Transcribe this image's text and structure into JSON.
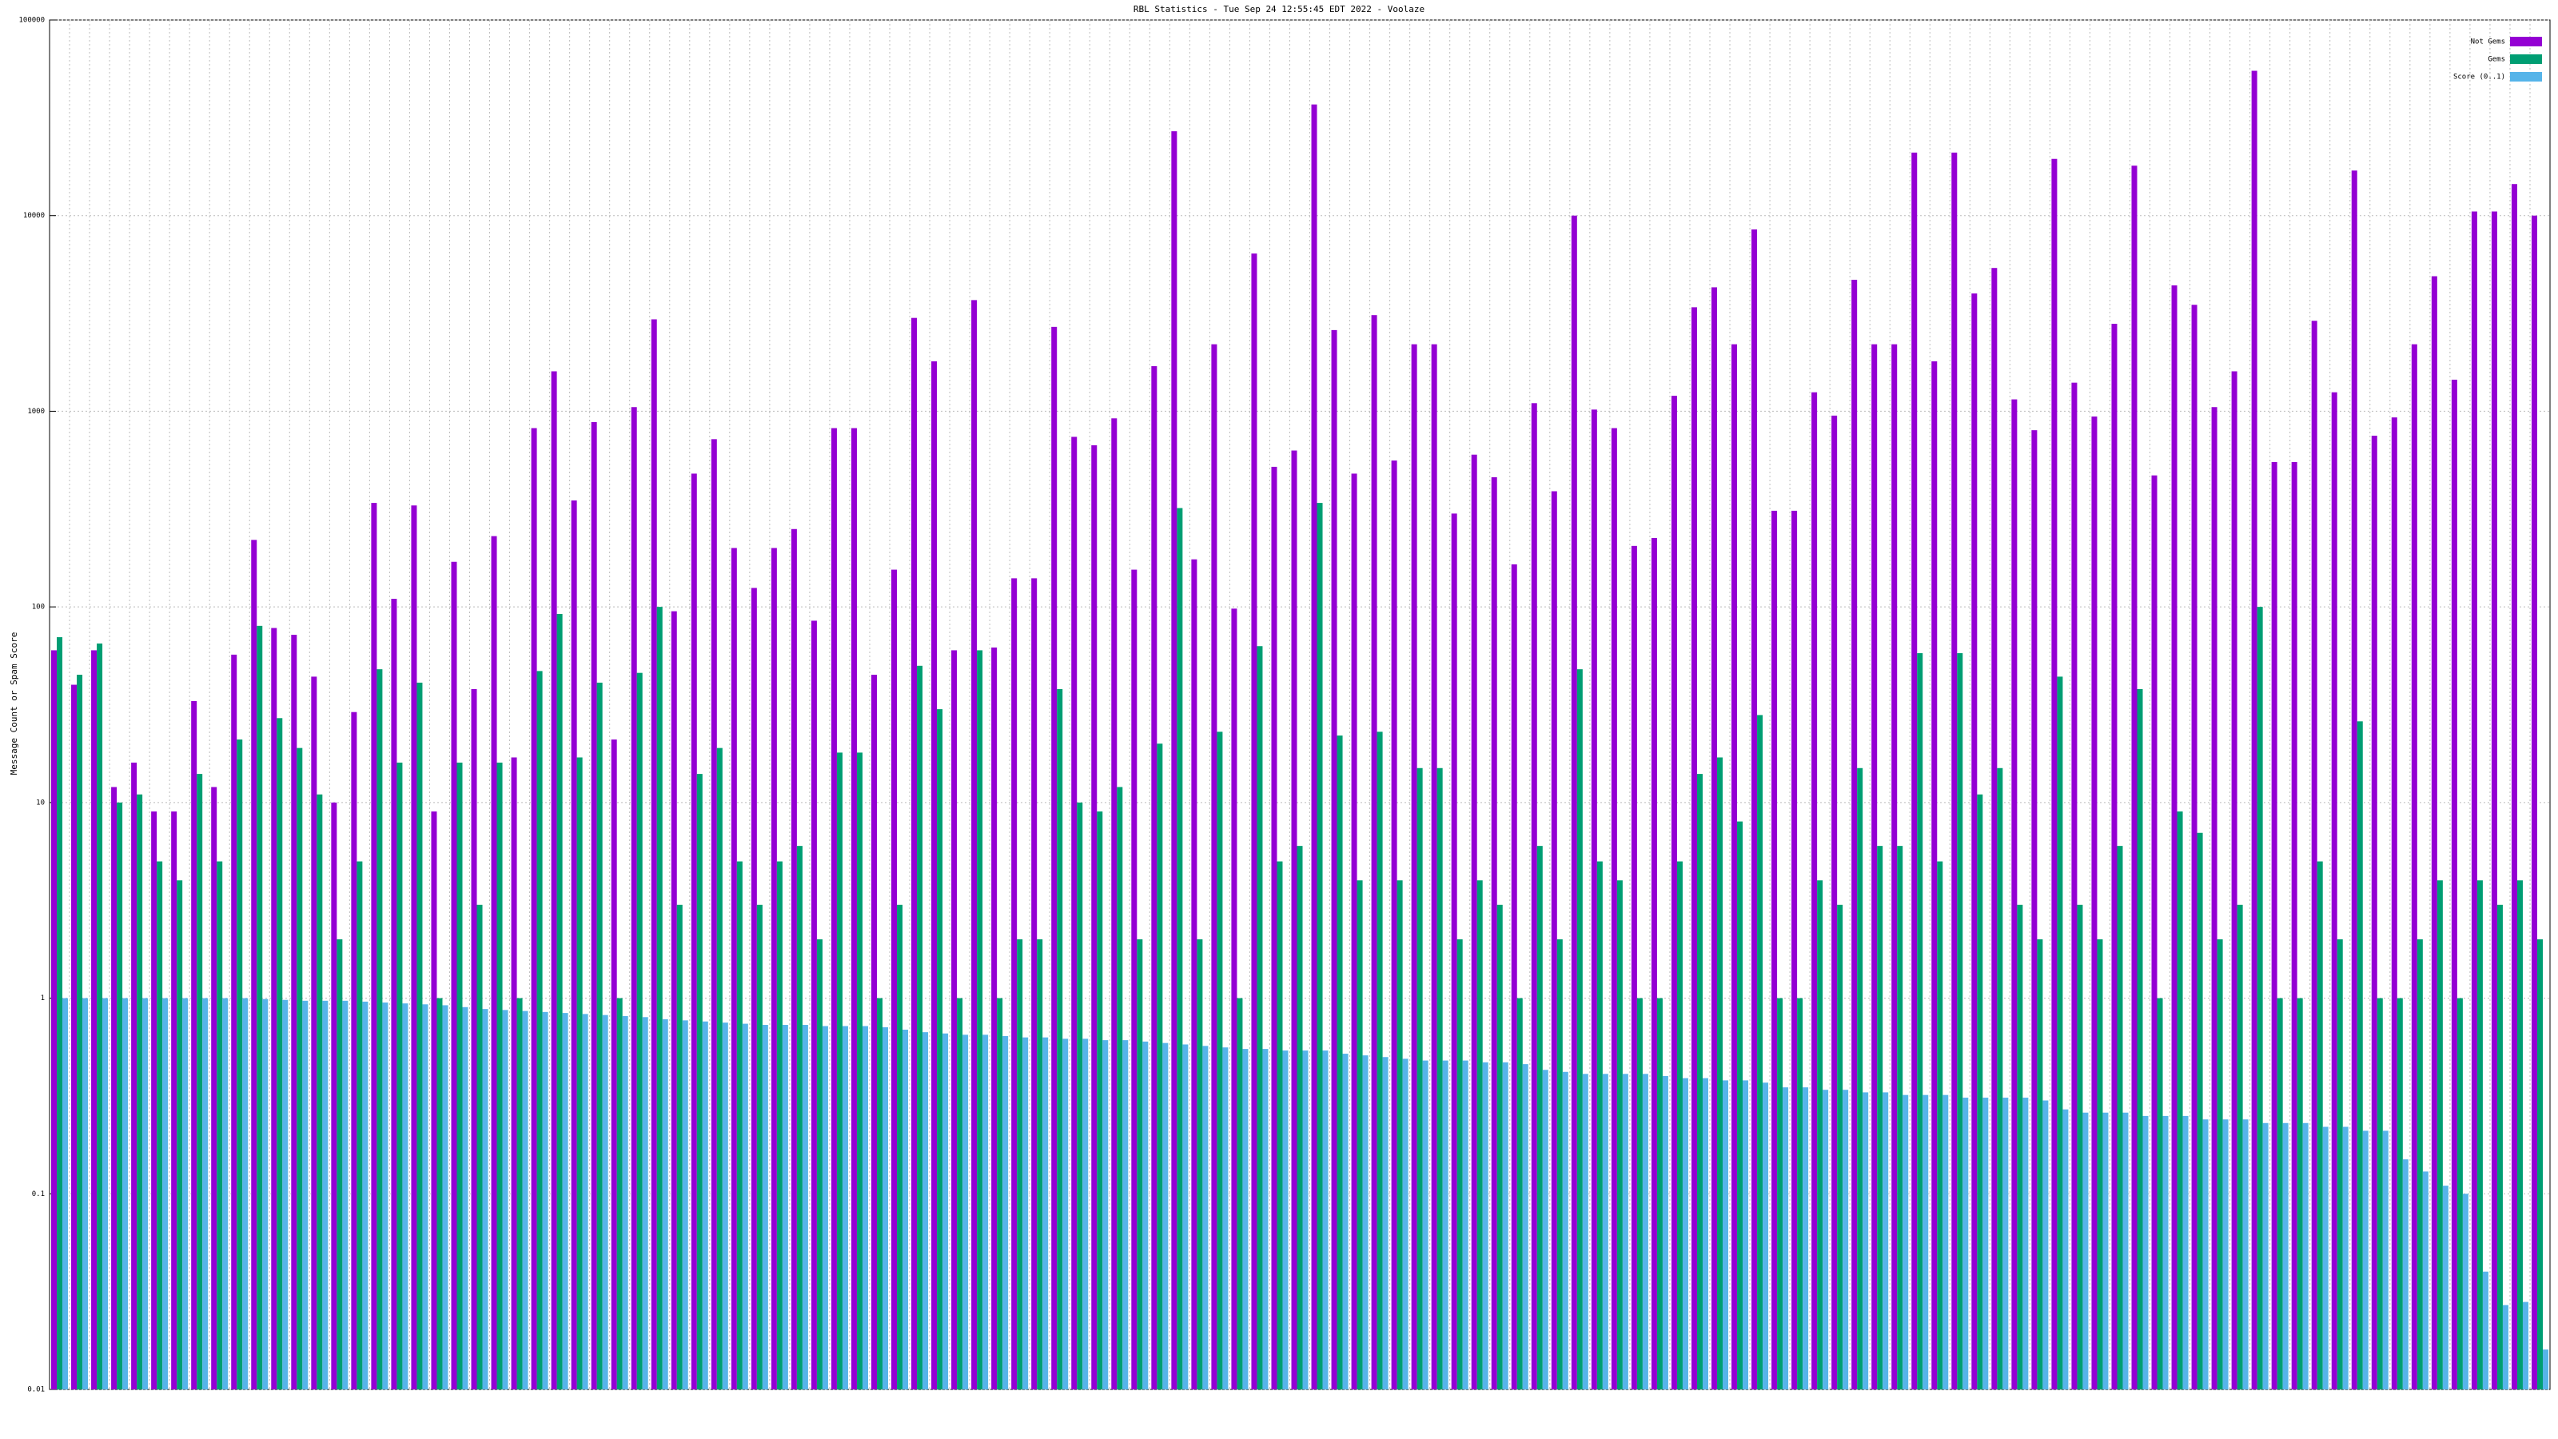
{
  "chart_data": {
    "type": "bar",
    "title": "RBL Statistics - Tue Sep 24 12:55:45 EDT 2022 - Voolaze",
    "y_label": "Message Count or Spam Score",
    "log_scale": true,
    "grid": true,
    "legend": "top-right",
    "ylim": [
      0.01,
      100000
    ],
    "yticks": [
      0.01,
      0.1,
      1,
      10,
      100,
      1000,
      10000,
      100000
    ],
    "categories": [
      null,
      null,
      null,
      null,
      null,
      null,
      null,
      null,
      null,
      null,
      null,
      null,
      null,
      null,
      null,
      null,
      null,
      null,
      null,
      null,
      null,
      null,
      null,
      null,
      null,
      null,
      null,
      null,
      null,
      null,
      null,
      null,
      null,
      null,
      null,
      null,
      null,
      null,
      null,
      null,
      null,
      null,
      null,
      null,
      null,
      null,
      null,
      null,
      null,
      null,
      null,
      null,
      null,
      null,
      null,
      null,
      null,
      null,
      null,
      null,
      null,
      null,
      null,
      null,
      null,
      null,
      null,
      null,
      null,
      null,
      null,
      null,
      null,
      null,
      null,
      null,
      null,
      null,
      null,
      null,
      null,
      null,
      null,
      null,
      null,
      null,
      null,
      null,
      null,
      null,
      null,
      null,
      null,
      null,
      null,
      null,
      null,
      null,
      null,
      null,
      null,
      null,
      null,
      null,
      null,
      null,
      null,
      null,
      null,
      null,
      null,
      null,
      null,
      null,
      null,
      null,
      null,
      null,
      null,
      null,
      null,
      null,
      null,
      null,
      null
    ],
    "series": [
      {
        "name": "Not Gems",
        "color": "#9400d3",
        "values": [
          60,
          40,
          60,
          12,
          16,
          9,
          9,
          33,
          12,
          57,
          220,
          78,
          72,
          44,
          10,
          29,
          340,
          110,
          330,
          9,
          170,
          38,
          230,
          17,
          820,
          1600,
          350,
          880,
          21,
          1050,
          2950,
          95,
          480,
          720,
          200,
          125,
          200,
          250,
          85,
          820,
          820,
          45,
          155,
          3000,
          1800,
          60,
          3700,
          62,
          140,
          140,
          2700,
          740,
          670,
          920,
          155,
          1700,
          27000,
          175,
          2200,
          98,
          6400,
          520,
          630,
          37000,
          2600,
          480,
          3100,
          560,
          2200,
          2200,
          300,
          600,
          460,
          165,
          1100,
          390,
          10000,
          1020,
          820,
          205,
          225,
          1200,
          3400,
          4300,
          2200,
          8500,
          310,
          310,
          1250,
          950,
          4700,
          2200,
          2200,
          21000,
          1800,
          21000,
          4000,
          5400,
          1150,
          800,
          19500,
          1400,
          940,
          2800,
          18000,
          470,
          4400,
          3500,
          1050,
          1600,
          55000,
          550,
          550,
          2900,
          1250,
          17000,
          750,
          930,
          2200,
          4900,
          1450,
          10500,
          10500,
          14500,
          10000
        ]
      },
      {
        "name": "Gems",
        "color": "#009e73",
        "values": [
          70,
          45,
          65,
          10,
          11,
          5,
          4,
          14,
          5,
          21,
          80,
          27,
          19,
          11,
          2,
          5,
          48,
          16,
          41,
          1,
          16,
          3,
          16,
          1,
          47,
          92,
          17,
          41,
          1,
          46,
          100,
          3,
          14,
          19,
          5,
          3,
          5,
          6,
          2,
          18,
          18,
          1,
          3,
          50,
          30,
          1,
          60,
          1,
          2,
          2,
          38,
          10,
          9,
          12,
          2,
          20,
          320,
          2,
          23,
          1,
          63,
          5,
          6,
          340,
          22,
          4,
          23,
          4,
          15,
          15,
          2,
          4,
          3,
          1,
          6,
          2,
          48,
          5,
          4,
          1,
          1,
          5,
          14,
          17,
          8,
          28,
          1,
          1,
          4,
          3,
          15,
          6,
          6,
          58,
          5,
          58,
          11,
          15,
          3,
          2,
          44,
          3,
          2,
          6,
          38,
          1,
          9,
          7,
          2,
          3,
          100,
          1,
          1,
          5,
          2,
          26,
          1,
          1,
          2,
          4,
          1,
          4,
          3,
          4,
          2
        ]
      },
      {
        "name": "Score (0..1)",
        "color": "#56b4e9",
        "values": [
          1,
          1,
          1,
          1,
          1,
          1,
          1,
          1,
          1,
          1,
          0.99,
          0.98,
          0.97,
          0.97,
          0.97,
          0.96,
          0.95,
          0.94,
          0.93,
          0.92,
          0.9,
          0.88,
          0.87,
          0.86,
          0.85,
          0.84,
          0.83,
          0.82,
          0.81,
          0.8,
          0.78,
          0.77,
          0.76,
          0.75,
          0.74,
          0.73,
          0.73,
          0.73,
          0.72,
          0.72,
          0.72,
          0.71,
          0.69,
          0.67,
          0.66,
          0.65,
          0.65,
          0.64,
          0.63,
          0.63,
          0.62,
          0.62,
          0.61,
          0.61,
          0.6,
          0.59,
          0.58,
          0.57,
          0.56,
          0.55,
          0.55,
          0.54,
          0.54,
          0.54,
          0.52,
          0.51,
          0.5,
          0.49,
          0.48,
          0.48,
          0.48,
          0.47,
          0.47,
          0.46,
          0.43,
          0.42,
          0.41,
          0.41,
          0.41,
          0.41,
          0.4,
          0.39,
          0.39,
          0.38,
          0.38,
          0.37,
          0.35,
          0.35,
          0.34,
          0.34,
          0.33,
          0.33,
          0.32,
          0.32,
          0.32,
          0.31,
          0.31,
          0.31,
          0.31,
          0.3,
          0.27,
          0.26,
          0.26,
          0.26,
          0.25,
          0.25,
          0.25,
          0.24,
          0.24,
          0.24,
          0.23,
          0.23,
          0.23,
          0.22,
          0.22,
          0.21,
          0.21,
          0.15,
          0.13,
          0.11,
          0.1,
          0.04,
          0.027,
          0.028,
          0.016
        ]
      }
    ]
  }
}
